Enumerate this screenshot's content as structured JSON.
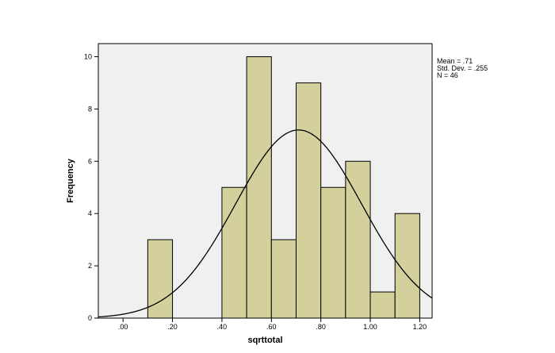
{
  "chart_data": {
    "type": "bar",
    "xlabel": "sqrttotal",
    "ylabel": "Frequency",
    "xlim": [
      -0.1,
      1.25
    ],
    "ylim": [
      0,
      10.5
    ],
    "x_ticks": [
      {
        "value": 0.0,
        "label": ".00"
      },
      {
        "value": 0.2,
        "label": ".20"
      },
      {
        "value": 0.4,
        "label": ".40"
      },
      {
        "value": 0.6,
        "label": ".60"
      },
      {
        "value": 0.8,
        "label": ".80"
      },
      {
        "value": 1.0,
        "label": "1.00"
      },
      {
        "value": 1.2,
        "label": "1.20"
      }
    ],
    "y_ticks": [
      0,
      2,
      4,
      6,
      8,
      10
    ],
    "bins": [
      {
        "start": 0.1,
        "end": 0.2,
        "count": 3
      },
      {
        "start": 0.4,
        "end": 0.5,
        "count": 5
      },
      {
        "start": 0.5,
        "end": 0.6,
        "count": 10
      },
      {
        "start": 0.6,
        "end": 0.7,
        "count": 3
      },
      {
        "start": 0.7,
        "end": 0.8,
        "count": 9
      },
      {
        "start": 0.8,
        "end": 0.9,
        "count": 5
      },
      {
        "start": 0.9,
        "end": 1.0,
        "count": 6
      },
      {
        "start": 1.0,
        "end": 1.1,
        "count": 1
      },
      {
        "start": 1.1,
        "end": 1.2,
        "count": 4
      }
    ],
    "normal_curve": {
      "mean": 0.71,
      "sd": 0.255,
      "n": 46,
      "bin_width": 0.1
    },
    "stats": [
      "Mean = .71",
      "Std. Dev. = .255",
      "N = 46"
    ],
    "legend_position": "top-right, outside plot",
    "grid": false,
    "colors": {
      "bar_fill": "#d3d09b",
      "bar_stroke": "#000000",
      "plot_background": "#f0f0f0",
      "curve": "#000000"
    }
  }
}
